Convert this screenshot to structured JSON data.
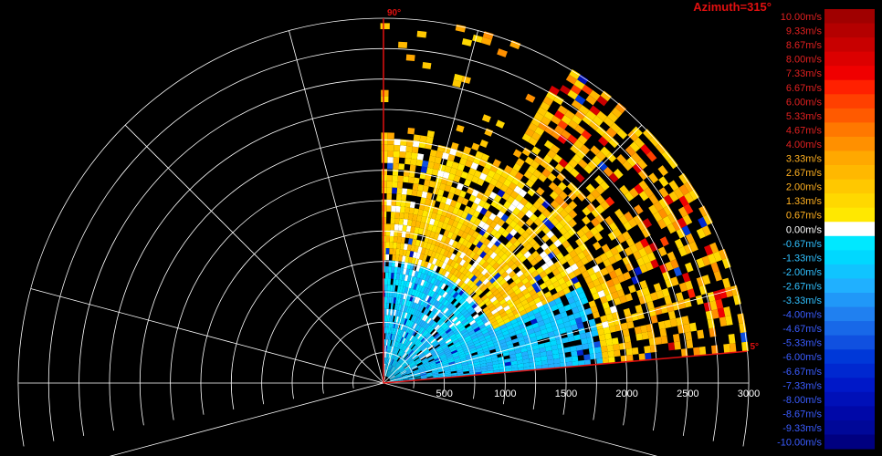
{
  "header": {
    "azimuth_label": "Azimuth=315°"
  },
  "chart_data": {
    "type": "heatmap",
    "subtype": "polar-sector-radar-velocity",
    "title": "Azimuth=315°",
    "range_axis": {
      "ticks": [
        500,
        1000,
        1500,
        2000,
        2500,
        3000
      ],
      "max": 3000,
      "ring_step": 250
    },
    "angle_axis": {
      "min_deg": 0,
      "max_deg": 180,
      "spoke_step_deg": 30
    },
    "sector": {
      "start_label": "5°",
      "end_label": "90°",
      "start_deg": 5,
      "end_deg": 90
    },
    "colorbar": {
      "unit": "m/s",
      "labels": [
        "10.00m/s",
        "9.33m/s",
        "8.67m/s",
        "8.00m/s",
        "7.33m/s",
        "6.67m/s",
        "6.00m/s",
        "5.33m/s",
        "4.67m/s",
        "4.00m/s",
        "3.33m/s",
        "2.67m/s",
        "2.00m/s",
        "1.33m/s",
        "0.67m/s",
        "0.00m/s",
        "-0.67m/s",
        "-1.33m/s",
        "-2.00m/s",
        "-2.67m/s",
        "-3.33m/s",
        "-4.00m/s",
        "-4.67m/s",
        "-5.33m/s",
        "-6.00m/s",
        "-6.67m/s",
        "-7.33m/s",
        "-8.00m/s",
        "-8.67m/s",
        "-9.33m/s",
        "-10.00m/s"
      ],
      "colors": [
        "#a00000",
        "#b40000",
        "#c80000",
        "#dc0000",
        "#f00000",
        "#ff2000",
        "#ff4000",
        "#ff5a00",
        "#ff7800",
        "#ff9000",
        "#ffa800",
        "#ffb800",
        "#ffc800",
        "#ffd800",
        "#ffe800",
        "#ffffff",
        "#00e8ff",
        "#00d8ff",
        "#10c4ff",
        "#20b0ff",
        "#2098f8",
        "#2080f0",
        "#1868e8",
        "#1050e0",
        "#0038d8",
        "#0028d0",
        "#0018c8",
        "#0010b8",
        "#0008a8",
        "#000898",
        "#000080"
      ]
    },
    "description_series": [
      {
        "range_band": [
          0,
          1000
        ],
        "velocity_mean": -1.5
      },
      {
        "range_band": [
          1000,
          2000
        ],
        "velocity_mean": 1.5
      },
      {
        "range_band": [
          2000,
          3000
        ],
        "velocity_mean": 2.5
      }
    ]
  },
  "colors": {
    "axis_red": "#e01010",
    "grid": "#ffffff",
    "background": "#000000"
  }
}
